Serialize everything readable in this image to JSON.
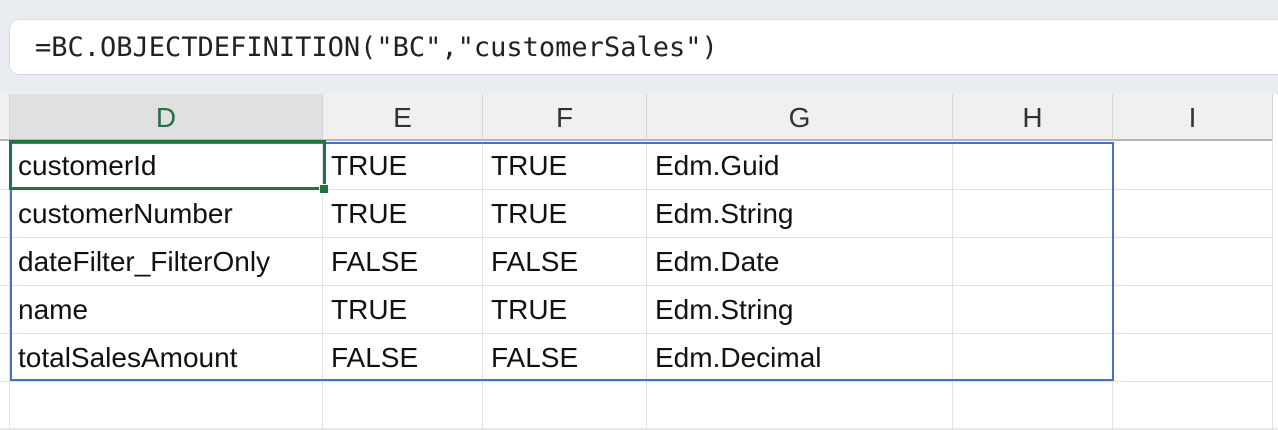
{
  "formula_bar": {
    "formula": "=BC.OBJECTDEFINITION(\"BC\",\"customerSales\")"
  },
  "columns": [
    "D",
    "E",
    "F",
    "G",
    "H",
    "I"
  ],
  "selected_column": "D",
  "rows": [
    [
      "customerId",
      "TRUE",
      "TRUE",
      "Edm.Guid",
      "",
      ""
    ],
    [
      "customerNumber",
      "TRUE",
      "TRUE",
      "Edm.String",
      "",
      ""
    ],
    [
      "dateFilter_FilterOnly",
      "FALSE",
      "FALSE",
      "Edm.Date",
      "",
      ""
    ],
    [
      "name",
      "TRUE",
      "TRUE",
      "Edm.String",
      "",
      ""
    ],
    [
      "totalSalesAmount",
      "FALSE",
      "FALSE",
      "Edm.Decimal",
      "",
      ""
    ],
    [
      "",
      "",
      "",
      "",
      "",
      ""
    ]
  ],
  "colors": {
    "selection": "#217346",
    "spill_border": "#4472c4"
  }
}
